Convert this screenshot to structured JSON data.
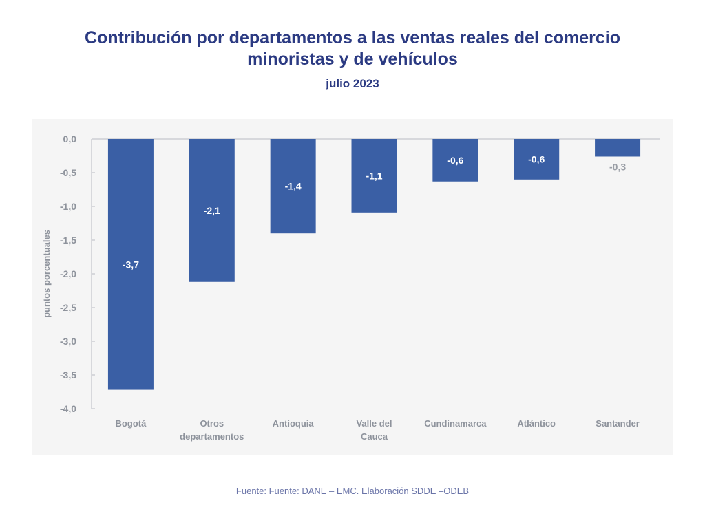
{
  "chart_data": {
    "type": "bar",
    "title": "Contribución por departamentos a las ventas reales del comercio minoristas y de vehículos",
    "title_lines": [
      "Contribución por departamentos a las ventas reales del comercio",
      "minoristas y de vehículos"
    ],
    "subtitle": "julio 2023",
    "xlabel": "",
    "ylabel": "puntos porcentuales",
    "ylim": [
      -4.0,
      0.0
    ],
    "yticks": [
      0.0,
      -0.5,
      -1.0,
      -1.5,
      -2.0,
      -2.5,
      -3.0,
      -3.5,
      -4.0
    ],
    "ytick_labels": [
      "0,0",
      "-0,5",
      "-1,0",
      "-1,5",
      "-2,0",
      "-2,5",
      "-3,0",
      "-3,5",
      "-4,0"
    ],
    "categories": [
      "Bogotá",
      "Otros departamentos",
      "Antioquia",
      "Valle del Cauca",
      "Cundinamarca",
      "Atlántico",
      "Santander"
    ],
    "category_lines": [
      [
        "Bogotá"
      ],
      [
        "Otros",
        "departamentos"
      ],
      [
        "Antioquia"
      ],
      [
        "Valle del",
        "Cauca"
      ],
      [
        "Cundinamarca"
      ],
      [
        "Atlántico"
      ],
      [
        "Santander"
      ]
    ],
    "values": [
      -3.72,
      -2.12,
      -1.4,
      -1.09,
      -0.63,
      -0.6,
      -0.26
    ],
    "data_labels": [
      "-3,7",
      "-2,1",
      "-1,4",
      "-1,1",
      "-0,6",
      "-0,6",
      "-0,3"
    ],
    "grid": false,
    "legend": "none",
    "bar_color": "#3a5fa5",
    "source": "Fuente: Fuente: DANE – EMC. Elaboración SDDE –ODEB"
  }
}
